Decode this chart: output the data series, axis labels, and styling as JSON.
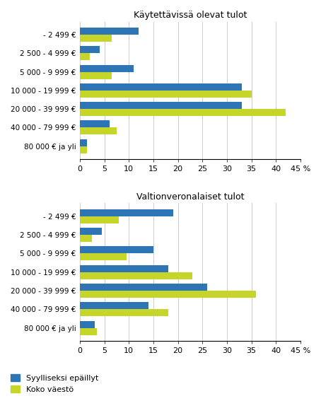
{
  "title1": "Käytettävissä olevat tulot",
  "title2": "Valtionveronalaiset tulot",
  "categories": [
    "- 2 499 €",
    "2 500 - 4 999 €",
    "5 000 - 9 999 €",
    "10 000 - 19 999 €",
    "20 000 - 39 999 €",
    "40 000 - 79 999 €",
    "80 000 € ja yli"
  ],
  "chart1_blue": [
    12,
    4,
    11,
    33,
    33,
    6,
    1.5
  ],
  "chart1_green": [
    6.5,
    2,
    6.5,
    35,
    42,
    7.5,
    1.5
  ],
  "chart2_blue": [
    19,
    4.5,
    15,
    18,
    26,
    14,
    3
  ],
  "chart2_green": [
    8,
    2.5,
    9.5,
    23,
    36,
    18,
    3.5
  ],
  "color_blue": "#2E75B6",
  "color_green": "#C5D52A",
  "xlim": [
    0,
    45
  ],
  "xticks": [
    0,
    5,
    10,
    15,
    20,
    25,
    30,
    35,
    40,
    45
  ],
  "legend_labels": [
    "Syylliseksi epäillyt",
    "Koko väestö"
  ],
  "xlabel_pct": "%"
}
